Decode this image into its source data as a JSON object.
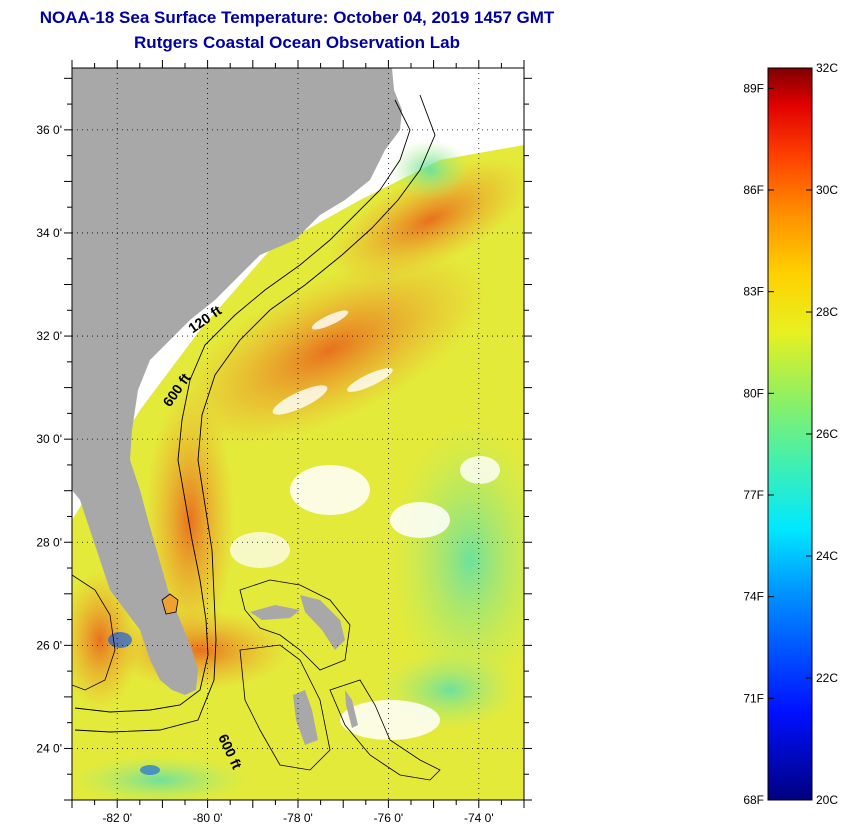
{
  "title": {
    "line1": "NOAA-18 Sea Surface Temperature:  October 04, 2019 1457 GMT",
    "line2": "Rutgers Coastal Ocean Observation Lab"
  },
  "map": {
    "lat_range": [
      23,
      37.2
    ],
    "lon_range": [
      -83,
      -73
    ],
    "lat_ticks": [
      {
        "value": 36,
        "label": "36 0'"
      },
      {
        "value": 34,
        "label": "34 0'"
      },
      {
        "value": 32,
        "label": "32 0'"
      },
      {
        "value": 30,
        "label": "30 0'"
      },
      {
        "value": 28,
        "label": "28 0'"
      },
      {
        "value": 26,
        "label": "26 0'"
      },
      {
        "value": 24,
        "label": "24 0'"
      }
    ],
    "lon_ticks": [
      {
        "value": -82,
        "label": "-82 0'"
      },
      {
        "value": -80,
        "label": "-80 0'"
      },
      {
        "value": -78,
        "label": "-78 0'"
      },
      {
        "value": -76,
        "label": "-76 0'"
      },
      {
        "value": -74,
        "label": "-74 0'"
      }
    ],
    "contour_labels": [
      {
        "text": "120 ft",
        "lon": -80.0,
        "lat": 32.25,
        "angle": -35
      },
      {
        "text": "600 ft",
        "lon": -80.6,
        "lat": 30.9,
        "angle": -55
      },
      {
        "text": "600 ft",
        "lon": -79.6,
        "lat": 23.9,
        "angle": 65
      }
    ],
    "colors": {
      "land": "#a8a8a8",
      "ocean_dominant": "#e8e838",
      "warm": "#ee7a22",
      "cool": "#5fe0a0"
    }
  },
  "colorbar": {
    "range_c": [
      20,
      32
    ],
    "fahrenheit_labels": [
      "89F",
      "86F",
      "83F",
      "80F",
      "77F",
      "74F",
      "71F",
      "68F"
    ],
    "celsius_labels": [
      "32C",
      "30C",
      "28C",
      "26C",
      "24C",
      "22C",
      "20C"
    ],
    "fahrenheit_values": [
      89,
      86,
      83,
      80,
      77,
      74,
      71,
      68
    ],
    "celsius_values": [
      32,
      30,
      28,
      26,
      24,
      22,
      20
    ]
  }
}
